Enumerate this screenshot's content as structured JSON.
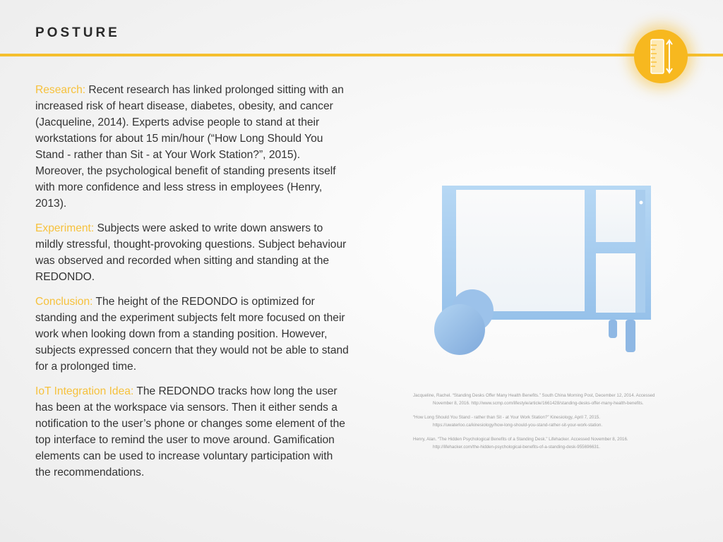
{
  "page": {
    "title": "POSTURE"
  },
  "icon": {
    "name": "ruler-height-icon",
    "accent_color": "#f7b81f"
  },
  "sections": [
    {
      "label": "Research:",
      "body": " Recent research has linked prolonged sitting with an increased risk of heart disease, diabetes, obesity, and cancer (Jacqueline, 2014). Experts advise people to stand at their workstations for about 15 min/hour (“How Long Should You Stand - rather than Sit - at Your Work Station?”, 2015). Moreover, the psychological benefit of standing presents itself with more confidence and less stress in employees (Henry, 2013)."
    },
    {
      "label": "Experiment:",
      "body": " Subjects were asked to write down answers to mildly stressful, thought-provoking questions. Subject behaviour was observed and recorded when sitting and standing at the REDONDO."
    },
    {
      "label": "Conclusion:",
      "body": " The height of the REDONDO is optimized for standing and the experiment subjects felt more focused on their work when looking down from a standing position. However, subjects expressed concern that they would not be able to stand for a prolonged time."
    },
    {
      "label": "IoT Integration Idea:",
      "body": " The REDONDO tracks how long the user has been at the workspace via sensors. Then it either sends a notification to the user’s phone or changes some element of the top interface to remind the user to move around. Gamification elements can be used to increase voluntary participation with the recommendations."
    }
  ],
  "references": [
    "Jacqueline, Rachel. “Standing Desks Offer Many Health Benefits.” South China Morning Post, December 12, 2014. Accessed November 8, 2016. http://www.scmp.com/lifestyle/article/1661428/standing-desks-offer-many-health-benefits.",
    "“How Long Should You Stand - rather than Sit - at Your Work Station?” Kinesiology, April 7, 2015. https://uwaterloo.ca/kinesiology/how-long-should-you-stand-rather-sit-your-work-station.",
    "Henry, Alan. “The Hidden Psychological Benefits of a Standing Desk.” Lifehacker. Accessed November 8, 2016. http://lifehacker.com/the-hidden-psychological-benefits-of-a-standing-desk-955696631."
  ],
  "illustration": {
    "name": "standing-desk-cart-illustration",
    "color": "#a9cdee"
  }
}
